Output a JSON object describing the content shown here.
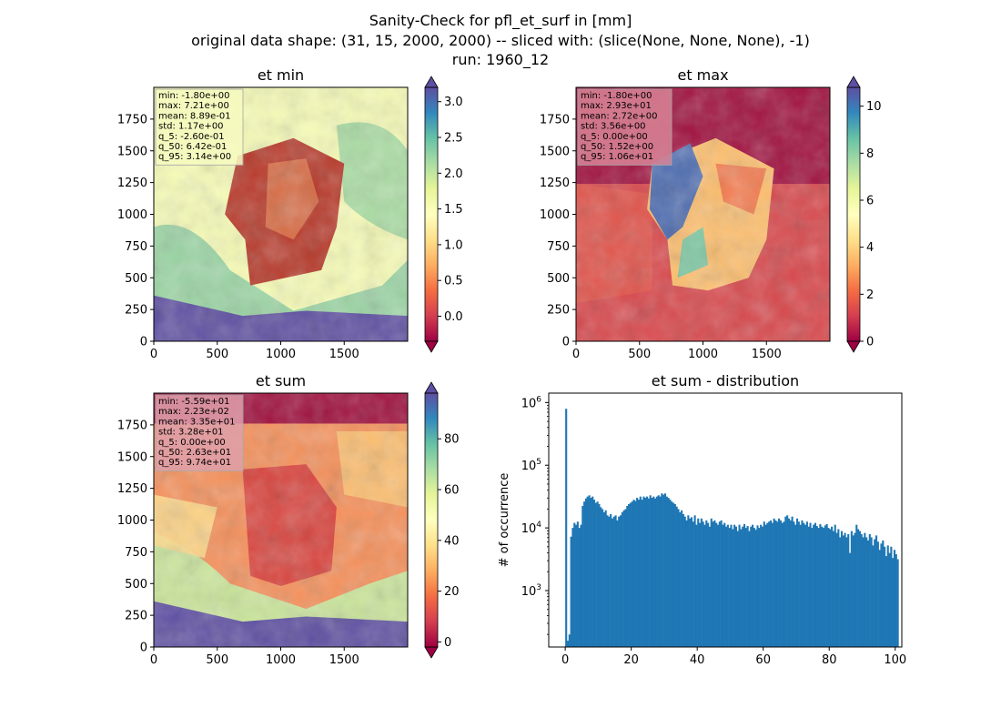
{
  "figure": {
    "title_lines": [
      "Sanity-Check for pfl_et_surf in [mm]",
      "original data shape: (31, 15, 2000, 2000) -- sliced with: (slice(None, None, None), -1)",
      "run: 1960_12"
    ]
  },
  "colors": {
    "hist_bar": "#1f77b4",
    "spectral": [
      "#9e0142",
      "#d53e4f",
      "#f46d43",
      "#fdae61",
      "#fee08b",
      "#ffffbf",
      "#e6f598",
      "#abdda4",
      "#66c2a5",
      "#3288bd",
      "#5e4fa2"
    ]
  },
  "chart_data": [
    {
      "type": "heatmap",
      "title": "et min",
      "colormap": "Spectral",
      "x_ticks": [
        0,
        500,
        1000,
        1500
      ],
      "y_ticks": [
        0,
        250,
        500,
        750,
        1000,
        1250,
        1500,
        1750
      ],
      "xlim": [
        0,
        2000
      ],
      "ylim": [
        0,
        2000
      ],
      "colorbar": {
        "min": -0.35,
        "max": 3.2,
        "ticks": [
          "0.0",
          "0.5",
          "1.0",
          "1.5",
          "2.0",
          "2.5",
          "3.0"
        ],
        "tick_values": [
          0,
          0.5,
          1.0,
          1.5,
          2.0,
          2.5,
          3.0
        ],
        "extend": "both"
      },
      "stats": [
        "min: -1.80e+00",
        "max: 7.21e+00",
        "mean: 8.89e-01",
        "std: 1.17e+00",
        "q_5: -2.60e-01",
        "q_50: 6.42e-01",
        "q_95: 3.14e+00"
      ],
      "stats_box_color": "#f7fbc0"
    },
    {
      "type": "heatmap",
      "title": "et max",
      "colormap": "Spectral",
      "x_ticks": [
        0,
        500,
        1000,
        1500
      ],
      "y_ticks": [
        0,
        250,
        500,
        750,
        1000,
        1250,
        1500,
        1750
      ],
      "xlim": [
        0,
        2000
      ],
      "ylim": [
        0,
        2000
      ],
      "colorbar": {
        "min": 0,
        "max": 10.8,
        "ticks": [
          "0",
          "2",
          "4",
          "6",
          "8",
          "10"
        ],
        "tick_values": [
          0,
          2,
          4,
          6,
          8,
          10
        ],
        "extend": "both"
      },
      "stats": [
        "min: -1.80e+00",
        "max: 2.93e+01",
        "mean: 2.72e+00",
        "std: 3.56e+00",
        "q_5: 0.00e+00",
        "q_50: 1.52e+00",
        "q_95: 1.06e+01"
      ],
      "stats_box_color": "#d98496"
    },
    {
      "type": "heatmap",
      "title": "et sum",
      "colormap": "Spectral",
      "x_ticks": [
        0,
        500,
        1000,
        1500
      ],
      "y_ticks": [
        0,
        250,
        500,
        750,
        1000,
        1250,
        1500,
        1750
      ],
      "xlim": [
        0,
        2000
      ],
      "ylim": [
        0,
        2000
      ],
      "colorbar": {
        "min": -2,
        "max": 98,
        "ticks": [
          "0",
          "20",
          "40",
          "60",
          "80"
        ],
        "tick_values": [
          0,
          20,
          40,
          60,
          80
        ],
        "extend": "both"
      },
      "stats": [
        "min: -5.59e+01",
        "max: 2.23e+02",
        "mean: 3.35e+01",
        "std: 3.28e+01",
        "q_5: 0.00e+00",
        "q_50: 2.63e+01",
        "q_95: 9.74e+01"
      ],
      "stats_box_color": "#e0a0ab"
    },
    {
      "type": "bar",
      "title": "et sum - distribution",
      "ylabel": "# of occurrence",
      "yscale": "log",
      "xlim": [
        -5,
        102
      ],
      "ylim_exp": [
        2.1,
        6.15
      ],
      "x_ticks": [
        0,
        20,
        40,
        60,
        80,
        100
      ],
      "y_ticks": [
        {
          "base": "10",
          "exp": "3",
          "value": 3
        },
        {
          "base": "10",
          "exp": "4",
          "value": 4
        },
        {
          "base": "10",
          "exp": "5",
          "value": 5
        },
        {
          "base": "10",
          "exp": "6",
          "value": 6
        }
      ],
      "bin_width": 0.5,
      "x_start": 0,
      "counts_log10": [
        5.9,
        2.2,
        2.3,
        3.86,
        4.0,
        4.08,
        4.05,
        4.1,
        4.0,
        4.05,
        4.35,
        4.42,
        4.47,
        4.5,
        4.52,
        4.48,
        4.5,
        4.45,
        4.4,
        4.42,
        4.38,
        4.33,
        4.3,
        4.25,
        4.28,
        4.2,
        4.18,
        4.22,
        4.15,
        4.18,
        4.2,
        4.12,
        4.18,
        4.2,
        4.25,
        4.28,
        4.3,
        4.35,
        4.38,
        4.4,
        4.42,
        4.45,
        4.43,
        4.48,
        4.45,
        4.5,
        4.45,
        4.5,
        4.48,
        4.5,
        4.47,
        4.52,
        4.48,
        4.5,
        4.47,
        4.5,
        4.52,
        4.5,
        4.55,
        4.53,
        4.55,
        4.5,
        4.48,
        4.45,
        4.42,
        4.4,
        4.38,
        4.34,
        4.3,
        4.25,
        4.28,
        4.22,
        4.18,
        4.12,
        4.2,
        4.15,
        4.17,
        4.1,
        4.2,
        4.05,
        4.15,
        4.08,
        4.15,
        4.1,
        4.05,
        4.12,
        4.08,
        4.02,
        4.15,
        4.1,
        4.12,
        4.08,
        4.05,
        4.1,
        4.12,
        4.05,
        4.08,
        4.02,
        4.05,
        4.0,
        4.05,
        3.98,
        4.05,
        4.02,
        3.95,
        4.05,
        3.98,
        4.02,
        4.06,
        4.0,
        4.03,
        3.95,
        4.02,
        4.05,
        4.0,
        3.97,
        4.04,
        4.0,
        4.05,
        4.02,
        4.1,
        4.05,
        4.08,
        4.1,
        4.12,
        4.08,
        4.15,
        4.12,
        4.1,
        4.15,
        4.12,
        4.08,
        4.1,
        4.18,
        4.2,
        4.15,
        4.12,
        4.18,
        4.1,
        4.05,
        4.15,
        4.1,
        4.05,
        4.12,
        4.08,
        4.05,
        4.1,
        4.02,
        4.08,
        4.0,
        4.05,
        4.08,
        4.03,
        4.0,
        4.06,
        4.02,
        4.0,
        4.04,
        4.06,
        4.0,
        3.98,
        4.02,
        3.95,
        4.05,
        3.92,
        3.98,
        3.85,
        3.95,
        3.88,
        3.92,
        3.85,
        3.9,
        3.6,
        3.95,
        3.88,
        3.92,
        4.05,
        3.98,
        3.95,
        3.9,
        3.85,
        3.92,
        3.85,
        3.8,
        3.9,
        3.85,
        3.72,
        3.82,
        3.88,
        3.78,
        3.65,
        3.75,
        3.8,
        3.7,
        3.55,
        3.72,
        3.6,
        3.7,
        3.52,
        3.65,
        3.58,
        3.5
      ]
    }
  ]
}
